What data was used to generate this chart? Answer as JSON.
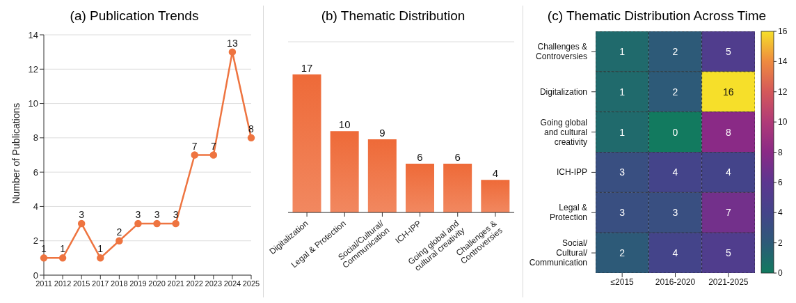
{
  "chart_data": [
    {
      "type": "line",
      "title": "(a) Publication Trends",
      "ylabel": "Number of Publications",
      "categories": [
        "2011",
        "2012",
        "2015",
        "2017",
        "2018",
        "2019",
        "2020",
        "2021",
        "2022",
        "2023",
        "2024",
        "2025"
      ],
      "values": [
        1,
        1,
        3,
        1,
        2,
        3,
        3,
        3,
        7,
        7,
        13,
        8
      ],
      "color": "#ee7440",
      "ylim": [
        0,
        14
      ],
      "yticks": [
        0,
        2,
        4,
        6,
        8,
        10,
        12,
        14
      ],
      "grid": "y",
      "marker": "circle",
      "line_style": "solid",
      "data_labels": true
    },
    {
      "type": "bar",
      "title": "(b) Thematic Distribution",
      "categories": [
        "Digitalization",
        "Legal & Protection",
        "Social/Cultural/Communication",
        "ICH-IPP",
        "Going global and cultural creativity",
        "Challenges & Controversies"
      ],
      "values": [
        17,
        10,
        9,
        6,
        6,
        4
      ],
      "color": "#ee6a38",
      "tick_labels": "x",
      "grid": "y",
      "data_labels": true
    },
    {
      "type": "heatmap",
      "title": "(c) Thematic Distribution Across Time",
      "categories": [
        "≤2015",
        "2016-2020",
        "2021-2025"
      ],
      "y_categories": [
        "Challenges & Controversies",
        "Digitalization",
        "Going global and cultural creativity",
        "ICH-IPP",
        "Legal & Protection",
        "Social/Cultural/Communication"
      ],
      "cells": [
        [
          1,
          2,
          5
        ],
        [
          1,
          2,
          16
        ],
        [
          1,
          0,
          8
        ],
        [
          3,
          4,
          4
        ],
        [
          3,
          3,
          7
        ],
        [
          2,
          4,
          5
        ]
      ],
      "clim": [
        0,
        16
      ],
      "cticks": [
        0,
        2,
        4,
        6,
        8,
        10,
        12,
        14,
        16
      ],
      "data_labels": true
    }
  ]
}
